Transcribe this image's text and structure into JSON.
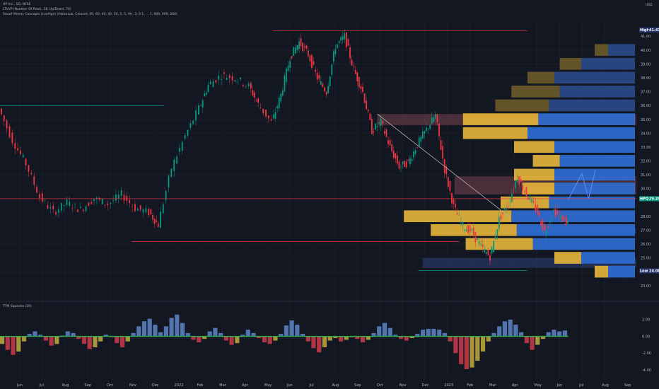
{
  "legend": {
    "symbol": "HP Inc., 1D, NYSE",
    "indicator1": "LTVVP (Number Of Rows, 24, Up/Down, 70)",
    "indicator2": "Smart Money Concepts (LuxAlgo) (Historical, Colored, 40, 60, 40, 40, 50, 5, 5, Atr, 3, 0.1, ... 1, 000, 000, 000)",
    "currency": "USD",
    "oscillator": "TTM Squeeze (20)"
  },
  "chart_data": {
    "type": "candlestick",
    "price_axis": {
      "ticks": [
        "41.00",
        "40.00",
        "39.00",
        "38.00",
        "37.00",
        "36.00",
        "35.00",
        "34.00",
        "33.00",
        "32.00",
        "31.00",
        "30.00",
        "28.00",
        "27.00",
        "26.00",
        "25.00",
        "24.00",
        "23.00"
      ],
      "high_label": "High",
      "high_value": "41.47",
      "low_label": "Low",
      "low_value": "24.08",
      "last_symbol": "HPQ",
      "last_value": "29.29"
    },
    "osc_axis": {
      "ticks": [
        "2.00",
        "0.00",
        "-2.00",
        "-4.00"
      ]
    },
    "time_axis": [
      "Jun",
      "Jul",
      "Aug",
      "Sep",
      "Oct",
      "Nov",
      "Dec",
      "2022",
      "Feb",
      "Mar",
      "Apr",
      "May",
      "Jun",
      "Jul",
      "Aug",
      "Sep",
      "Oct",
      "Nov",
      "Dec",
      "2023",
      "Feb",
      "Mar",
      "Apr",
      "May",
      "Jun",
      "Jul",
      "Aug",
      "Sep"
    ],
    "price_path": [
      [
        0,
        35.8
      ],
      [
        3,
        33.5
      ],
      [
        6,
        31.8
      ],
      [
        9,
        29.4
      ],
      [
        12,
        28.3
      ],
      [
        15,
        29.0
      ],
      [
        18,
        28.5
      ],
      [
        21,
        29.3
      ],
      [
        24,
        28.9
      ],
      [
        27,
        29.6
      ],
      [
        30,
        28.6
      ],
      [
        33,
        28.3
      ],
      [
        35,
        27.4
      ],
      [
        38,
        31.5
      ],
      [
        41,
        33.8
      ],
      [
        44,
        35.8
      ],
      [
        46,
        37.5
      ],
      [
        49,
        38.2
      ],
      [
        52,
        38.0
      ],
      [
        55,
        37.4
      ],
      [
        57,
        36.1
      ],
      [
        60,
        34.8
      ],
      [
        62,
        36.8
      ],
      [
        64,
        39.5
      ],
      [
        66,
        40.6
      ],
      [
        68,
        39.7
      ],
      [
        70,
        38.0
      ],
      [
        72,
        37.0
      ],
      [
        74,
        40.3
      ],
      [
        76,
        41.0
      ],
      [
        78,
        38.6
      ],
      [
        80,
        37.0
      ],
      [
        82,
        34.2
      ],
      [
        84,
        34.8
      ],
      [
        86,
        33.0
      ],
      [
        88,
        31.6
      ],
      [
        90,
        31.9
      ],
      [
        92,
        33.2
      ],
      [
        94,
        34.3
      ],
      [
        96,
        35.3
      ],
      [
        98,
        31.4
      ],
      [
        100,
        28.7
      ],
      [
        102,
        27.3
      ],
      [
        104,
        26.9
      ],
      [
        106,
        25.8
      ],
      [
        108,
        25.1
      ],
      [
        110,
        27.8
      ],
      [
        112,
        28.9
      ],
      [
        114,
        30.9
      ],
      [
        116,
        29.6
      ],
      [
        118,
        28.6
      ],
      [
        120,
        26.9
      ],
      [
        122,
        28.4
      ],
      [
        124,
        27.8
      ],
      [
        125,
        27.4
      ]
    ],
    "projection": [
      [
        125,
        29.2
      ],
      [
        128,
        31.1
      ],
      [
        129.5,
        29.3
      ],
      [
        131,
        31.4
      ]
    ],
    "osc_values": [
      -0.9,
      -1.6,
      -2.2,
      -1.8,
      -0.6,
      0.3,
      0.6,
      0.2,
      -0.5,
      -1.1,
      -0.9,
      0.1,
      0.6,
      0.4,
      -0.3,
      -0.9,
      -1.5,
      -1.3,
      -0.6,
      0.2,
      -0.1,
      -0.8,
      -1.3,
      -0.6,
      0.4,
      1.2,
      1.8,
      2.1,
      1.4,
      0.5,
      1.2,
      2.2,
      2.6,
      1.6,
      0.4,
      -0.4,
      -0.7,
      -0.3,
      0.6,
      1.0,
      0.4,
      -0.5,
      -1.0,
      -0.8,
      0.2,
      0.8,
      0.4,
      -0.2,
      -0.7,
      -0.9,
      -0.5,
      0.3,
      1.3,
      1.9,
      1.4,
      0.3,
      -0.6,
      -1.4,
      -1.9,
      -1.3,
      -0.5,
      -0.2,
      -0.6,
      -0.4,
      -0.1,
      -0.3,
      -0.7,
      -0.4,
      0.4,
      1.2,
      1.6,
      1.0,
      0.2,
      -0.3,
      -0.5,
      -0.2,
      0.3,
      0.8,
      0.9,
      0.9,
      0.8,
      0.4,
      -0.6,
      -2.0,
      -3.3,
      -3.9,
      -3.7,
      -2.9,
      -1.8,
      -0.6,
      0.4,
      1.2,
      1.8,
      2.0,
      1.4,
      0.5,
      -0.8,
      -1.6,
      -1.0,
      -0.3,
      0.5,
      0.8,
      0.6,
      0.7
    ],
    "volume_profile": [
      {
        "price": 40.0,
        "up": 0.05,
        "down": 0.1,
        "poc": false
      },
      {
        "price": 39.0,
        "up": 0.08,
        "down": 0.2,
        "poc": false
      },
      {
        "price": 38.0,
        "up": 0.1,
        "down": 0.3,
        "poc": false
      },
      {
        "price": 37.0,
        "up": 0.18,
        "down": 0.28,
        "poc": false
      },
      {
        "price": 36.0,
        "up": 0.2,
        "down": 0.32,
        "poc": false
      },
      {
        "price": 35.0,
        "up": 0.28,
        "down": 0.36,
        "poc": false
      },
      {
        "price": 34.0,
        "up": 0.24,
        "down": 0.4,
        "poc": false
      },
      {
        "price": 33.0,
        "up": 0.15,
        "down": 0.3,
        "poc": false
      },
      {
        "price": 32.0,
        "up": 0.1,
        "down": 0.28,
        "poc": false
      },
      {
        "price": 31.0,
        "up": 0.15,
        "down": 0.3,
        "poc": false
      },
      {
        "price": 30.0,
        "up": 0.12,
        "down": 0.3,
        "poc": false
      },
      {
        "price": 29.0,
        "up": 0.18,
        "down": 0.32,
        "poc": false
      },
      {
        "price": 28.0,
        "up": 0.4,
        "down": 0.46,
        "poc": true
      },
      {
        "price": 27.0,
        "up": 0.32,
        "down": 0.44,
        "poc": false
      },
      {
        "price": 26.0,
        "up": 0.25,
        "down": 0.38,
        "poc": false
      },
      {
        "price": 25.0,
        "up": 0.1,
        "down": 0.2,
        "poc": false
      },
      {
        "price": 24.0,
        "up": 0.05,
        "down": 0.1,
        "poc": false
      }
    ],
    "zones": [
      {
        "kind": "supply",
        "x0": 83,
        "x1": 140,
        "y0": 35.4,
        "y1": 34.6
      },
      {
        "kind": "supply",
        "x0": 100,
        "x1": 140,
        "y0": 30.9,
        "y1": 29.6
      },
      {
        "kind": "demand",
        "x0": 111,
        "x1": 140,
        "y0": 27.2,
        "y1": 26.8
      },
      {
        "kind": "demand",
        "x0": 93,
        "x1": 140,
        "y0": 25.0,
        "y1": 24.3
      }
    ],
    "levels": [
      {
        "price": 41.4,
        "x0": 60,
        "x1": 116,
        "color": "#f23645"
      },
      {
        "price": 36.0,
        "x0": 0,
        "x1": 36,
        "color": "#089981"
      },
      {
        "price": 26.2,
        "x0": 29,
        "x1": 101,
        "color": "#f23645"
      },
      {
        "price": 24.1,
        "x0": 92,
        "x1": 116,
        "color": "#089981"
      }
    ],
    "trendline": [
      [
        83,
        35.4
      ],
      [
        112,
        28.0
      ]
    ],
    "last_price_line": 29.29
  },
  "colors": {
    "background": "#131722",
    "up": "#089981",
    "down": "#f23645",
    "vp_up": "#e8b63a",
    "vp_down": "#2f6fd6",
    "osc_pos": "#5b7fbf",
    "osc_neg_red": "#c23a4a",
    "osc_neg_yellow": "#b8a33c",
    "squeeze_dot": "#2fa84a"
  }
}
